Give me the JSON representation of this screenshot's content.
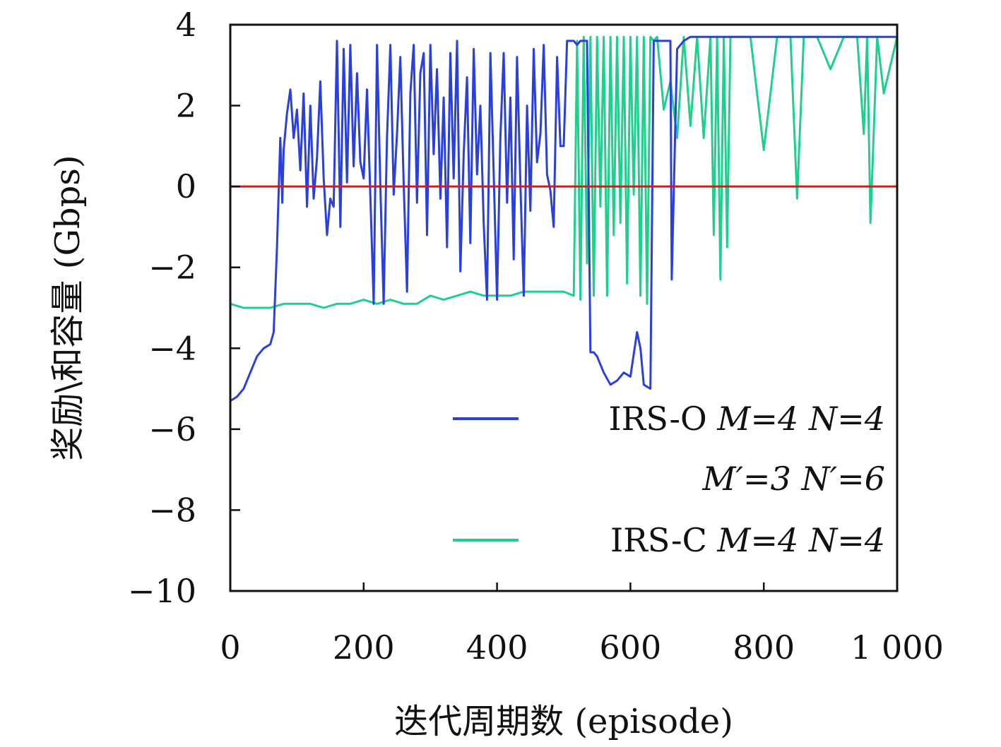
{
  "chart_data": {
    "type": "line",
    "xlabel": "迭代周期数 (episode)",
    "ylabel": "奖励\\和容量 (Gbps)",
    "xlim": [
      0,
      1000
    ],
    "ylim": [
      -10,
      4
    ],
    "x_ticks": [
      0,
      200,
      400,
      600,
      800,
      1000
    ],
    "x_tick_labels": [
      "0",
      "200",
      "400",
      "600",
      "800",
      "1 000"
    ],
    "y_ticks": [
      4,
      2,
      0,
      -2,
      -4,
      -6,
      -8,
      -10
    ],
    "y_tick_labels": [
      "4",
      "2",
      "0",
      "−2",
      "−4",
      "−6",
      "−8",
      "−10"
    ],
    "grid": false,
    "legend_position": "lower-right",
    "legend_lines": [
      {
        "series_index": 0,
        "label": "IRS-O",
        "math": "M=4 N=4"
      },
      {
        "series_index": -1,
        "label": "",
        "math": "M′=3 N′=6"
      },
      {
        "series_index": 1,
        "label": "IRS-C",
        "math": "M=4 N=4"
      }
    ],
    "series": [
      {
        "name": "IRS-O M=4 N=4 M′=3 N′=6",
        "color": "#2a3fe0",
        "x": [
          0,
          10,
          20,
          30,
          40,
          50,
          60,
          65,
          70,
          75,
          78,
          80,
          85,
          90,
          95,
          100,
          105,
          110,
          115,
          120,
          125,
          130,
          135,
          140,
          145,
          150,
          155,
          160,
          165,
          170,
          175,
          180,
          185,
          190,
          195,
          200,
          205,
          210,
          215,
          220,
          225,
          230,
          235,
          240,
          245,
          250,
          255,
          260,
          265,
          270,
          275,
          280,
          285,
          290,
          295,
          300,
          305,
          310,
          315,
          320,
          325,
          330,
          335,
          340,
          345,
          350,
          355,
          360,
          365,
          370,
          375,
          380,
          385,
          390,
          395,
          400,
          405,
          410,
          415,
          420,
          425,
          430,
          435,
          440,
          445,
          450,
          455,
          460,
          465,
          470,
          475,
          480,
          485,
          490,
          495,
          500,
          505,
          510,
          515,
          520,
          525,
          530,
          535,
          540,
          545,
          550,
          560,
          570,
          580,
          590,
          600,
          610,
          615,
          620,
          630,
          635,
          640,
          650,
          660,
          662,
          670,
          680,
          690,
          700,
          710,
          720,
          730,
          740,
          800,
          900,
          1000
        ],
        "y": [
          -5.3,
          -5.2,
          -5.0,
          -4.6,
          -4.2,
          -4.0,
          -3.9,
          -3.6,
          -1.5,
          1.2,
          -0.4,
          0.9,
          1.8,
          2.4,
          1.2,
          1.9,
          0.4,
          2.3,
          -0.5,
          2.0,
          -0.3,
          0.7,
          2.6,
          0.2,
          -1.2,
          -0.3,
          -0.5,
          3.6,
          -1.0,
          3.4,
          0.1,
          3.5,
          0.5,
          2.8,
          0.6,
          0.2,
          2.4,
          -0.2,
          -2.9,
          3.5,
          0.0,
          -2.9,
          1.2,
          3.5,
          -0.2,
          1.3,
          3.2,
          0.1,
          -2.6,
          2.3,
          3.5,
          -0.4,
          2.8,
          3.3,
          -1.2,
          3.5,
          0.8,
          2.9,
          -0.3,
          2.2,
          -1.5,
          3.3,
          0.2,
          3.6,
          -2.1,
          0.8,
          2.7,
          -1.4,
          3.4,
          0.3,
          2.0,
          -0.9,
          -2.8,
          3.3,
          0.3,
          -2.8,
          1.2,
          3.3,
          -0.4,
          2.2,
          -1.8,
          3.2,
          0.1,
          -2.7,
          2.0,
          -0.6,
          3.4,
          0.6,
          1.3,
          3.5,
          0.3,
          -0.1,
          -1.0,
          3.2,
          1.0,
          1.0,
          3.6,
          3.6,
          3.6,
          3.5,
          3.6,
          3.6,
          3.6,
          -4.1,
          -4.1,
          -4.2,
          -4.6,
          -4.9,
          -4.8,
          -4.6,
          -4.7,
          -3.6,
          -4.0,
          -4.9,
          -5.0,
          3.6,
          3.6,
          3.6,
          3.6,
          -2.3,
          3.4,
          3.6,
          3.7,
          3.7,
          3.7,
          3.7,
          3.7,
          3.7,
          3.7,
          3.7,
          3.7
        ]
      },
      {
        "name": "IRS-C M=4 N=4",
        "color": "#1fcf8c",
        "x": [
          0,
          20,
          40,
          60,
          80,
          100,
          120,
          140,
          160,
          180,
          200,
          220,
          240,
          260,
          280,
          300,
          320,
          340,
          360,
          380,
          400,
          420,
          440,
          460,
          480,
          500,
          515,
          520,
          525,
          530,
          535,
          540,
          545,
          550,
          555,
          560,
          565,
          570,
          575,
          580,
          585,
          590,
          595,
          600,
          605,
          610,
          615,
          620,
          625,
          630,
          635,
          640,
          650,
          660,
          670,
          680,
          690,
          700,
          710,
          720,
          725,
          730,
          735,
          740,
          745,
          750,
          760,
          780,
          800,
          820,
          840,
          850,
          860,
          880,
          900,
          920,
          940,
          950,
          955,
          960,
          970,
          980,
          1000
        ],
        "y": [
          -2.9,
          -3.0,
          -3.0,
          -3.0,
          -2.9,
          -2.9,
          -2.9,
          -3.0,
          -2.9,
          -2.9,
          -2.8,
          -2.9,
          -2.8,
          -2.9,
          -2.9,
          -2.7,
          -2.8,
          -2.7,
          -2.6,
          -2.7,
          -2.7,
          -2.7,
          -2.6,
          -2.6,
          -2.6,
          -2.6,
          -2.7,
          3.6,
          -2.8,
          3.7,
          -1.9,
          3.7,
          -2.7,
          3.7,
          -0.5,
          3.7,
          -2.7,
          3.7,
          -1.2,
          3.7,
          -0.9,
          3.7,
          -2.4,
          3.7,
          -0.2,
          3.7,
          -2.7,
          3.7,
          -2.9,
          3.7,
          3.6,
          3.7,
          1.9,
          2.6,
          1.2,
          3.7,
          1.5,
          3.7,
          1.2,
          3.7,
          -1.2,
          3.7,
          -2.3,
          3.7,
          -1.5,
          3.7,
          3.7,
          3.7,
          0.9,
          3.7,
          3.7,
          -0.3,
          3.7,
          3.7,
          2.9,
          3.7,
          3.7,
          1.3,
          3.7,
          -0.9,
          3.7,
          2.3,
          3.7
        ]
      },
      {
        "name": "",
        "color": "#e01616",
        "x": [
          0,
          1000
        ],
        "y": [
          0,
          0
        ]
      }
    ]
  }
}
